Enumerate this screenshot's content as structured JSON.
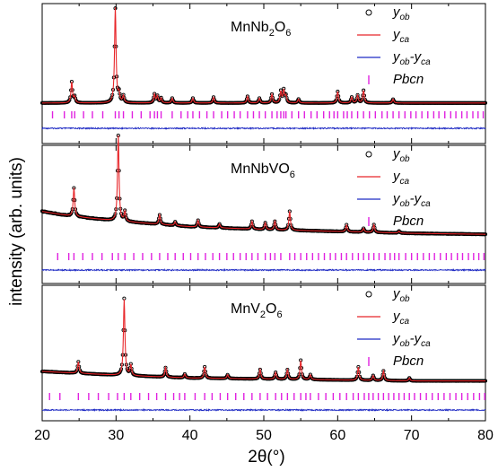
{
  "chart_data": {
    "type": "line",
    "xlabel": "2θ(°)",
    "ylabel": "intensity (arb. units)",
    "xlim": [
      20,
      80
    ],
    "xticks": [
      "20",
      "30",
      "40",
      "50",
      "60",
      "70",
      "80"
    ],
    "legend": {
      "placement": "top-right",
      "entries": [
        {
          "marker": "open-circle",
          "color": "#000000",
          "main": "y",
          "sub": "ob"
        },
        {
          "marker": "line",
          "color": "#e8262a",
          "main": "y",
          "sub": "ca"
        },
        {
          "marker": "line",
          "color": "#1f2bc4",
          "main": "y",
          "sub": "ob",
          "main2": "-y",
          "sub2": "ca"
        },
        {
          "marker": "tick",
          "color": "#e021e0",
          "main": "Pbcn"
        }
      ]
    },
    "colors": {
      "observed": "#000000",
      "calculated": "#e8262a",
      "difference": "#1f2bc4",
      "reflections": "#e021e0"
    },
    "panels": [
      {
        "sample_parts": [
          {
            "t": "MnNb"
          },
          {
            "t": "2",
            "sub": true
          },
          {
            "t": "O"
          },
          {
            "t": "6",
            "sub": true
          }
        ],
        "background": {
          "x": [
            20,
            25,
            35,
            50,
            65,
            80
          ],
          "y": [
            0.03,
            0.03,
            0.03,
            0.03,
            0.03,
            0.03
          ]
        },
        "peaks": {
          "x": [
            24.0,
            24.4,
            29.9,
            30.4,
            31.0,
            35.2,
            35.6,
            36.1,
            37.6,
            40.4,
            43.2,
            47.8,
            49.4,
            51.1,
            52.3,
            52.7,
            53.0,
            54.7,
            60.0,
            61.9,
            62.7,
            63.5,
            67.5
          ],
          "y": [
            0.22,
            0.06,
            1.0,
            0.09,
            0.07,
            0.09,
            0.07,
            0.05,
            0.05,
            0.05,
            0.06,
            0.07,
            0.05,
            0.09,
            0.12,
            0.13,
            0.07,
            0.04,
            0.12,
            0.06,
            0.08,
            0.13,
            0.04
          ]
        },
        "reflections": [
          21.4,
          23.0,
          24.0,
          24.4,
          25.6,
          26.8,
          28.2,
          29.9,
          30.4,
          31.0,
          32.2,
          33.4,
          34.6,
          35.2,
          35.6,
          36.1,
          37.6,
          38.8,
          39.7,
          40.4,
          41.3,
          42.3,
          43.2,
          44.3,
          45.1,
          46.0,
          46.8,
          47.8,
          48.6,
          49.4,
          50.2,
          51.1,
          51.8,
          52.3,
          52.7,
          53.0,
          53.8,
          54.7,
          55.5,
          56.4,
          57.2,
          58.1,
          58.9,
          59.5,
          60.0,
          60.8,
          61.3,
          61.9,
          62.7,
          63.5,
          64.3,
          65.1,
          66.0,
          66.7,
          67.5,
          68.3,
          69.1,
          69.9,
          70.6,
          71.4,
          72.2,
          73.0,
          73.7,
          74.5,
          75.3,
          76.0,
          76.8,
          77.5,
          78.3,
          79.0,
          79.7
        ]
      },
      {
        "sample_parts": [
          {
            "t": "MnNbVO"
          },
          {
            "t": "6",
            "sub": true
          }
        ],
        "background": {
          "x": [
            20,
            24,
            30,
            40,
            50,
            60,
            70,
            80
          ],
          "y": [
            0.38,
            0.33,
            0.28,
            0.22,
            0.19,
            0.17,
            0.15,
            0.14
          ]
        },
        "peaks": {
          "x": [
            24.3,
            30.3,
            31.2,
            35.9,
            38.0,
            41.1,
            44.0,
            48.4,
            50.2,
            51.5,
            53.5,
            61.2,
            63.5,
            64.9,
            68.3
          ],
          "y": [
            0.3,
            0.9,
            0.1,
            0.1,
            0.04,
            0.07,
            0.04,
            0.08,
            0.07,
            0.09,
            0.2,
            0.07,
            0.04,
            0.08,
            0.02
          ]
        },
        "reflections": [
          22.1,
          23.6,
          24.3,
          25.5,
          26.8,
          28.1,
          29.5,
          30.3,
          31.2,
          32.4,
          33.6,
          34.8,
          35.9,
          37.0,
          38.0,
          39.1,
          40.1,
          41.1,
          42.1,
          43.1,
          44.0,
          45.0,
          45.9,
          46.8,
          47.6,
          48.4,
          49.2,
          50.2,
          50.9,
          51.5,
          52.3,
          53.5,
          54.2,
          55.0,
          55.8,
          56.6,
          57.4,
          58.2,
          59.0,
          59.7,
          60.5,
          61.2,
          62.0,
          62.8,
          63.5,
          64.2,
          64.9,
          65.6,
          66.4,
          67.1,
          67.7,
          68.3,
          69.2,
          70.0,
          70.8,
          71.6,
          72.4,
          73.1,
          73.9,
          74.7,
          75.4,
          76.2,
          76.9,
          77.7,
          78.4,
          79.1,
          79.8
        ]
      },
      {
        "sample_parts": [
          {
            "t": "MnV"
          },
          {
            "t": "2",
            "sub": true
          },
          {
            "t": "O"
          },
          {
            "t": "6",
            "sub": true
          }
        ],
        "background": {
          "x": [
            20,
            25,
            30,
            40,
            50,
            60,
            70,
            80
          ],
          "y": [
            0.17,
            0.15,
            0.13,
            0.1,
            0.09,
            0.08,
            0.07,
            0.07
          ]
        },
        "peaks": {
          "x": [
            24.9,
            31.1,
            32.0,
            36.7,
            39.3,
            42.0,
            45.1,
            49.5,
            51.6,
            53.2,
            55.0,
            56.3,
            62.8,
            64.8,
            66.2,
            69.7
          ],
          "y": [
            0.12,
            0.8,
            0.11,
            0.1,
            0.04,
            0.12,
            0.04,
            0.1,
            0.07,
            0.1,
            0.2,
            0.05,
            0.14,
            0.05,
            0.1,
            0.03
          ]
        },
        "reflections": [
          21.0,
          22.4,
          24.9,
          26.3,
          27.6,
          29.0,
          30.2,
          31.1,
          32.0,
          33.2,
          34.4,
          35.5,
          36.7,
          37.8,
          38.6,
          39.3,
          40.7,
          42.0,
          43.0,
          44.1,
          45.1,
          46.2,
          47.3,
          48.4,
          49.5,
          50.5,
          51.6,
          52.4,
          53.2,
          54.1,
          55.0,
          55.7,
          56.3,
          57.4,
          58.4,
          59.4,
          60.3,
          61.2,
          62.1,
          62.8,
          63.6,
          64.2,
          64.8,
          65.5,
          66.2,
          66.9,
          67.6,
          68.3,
          69.0,
          69.7,
          70.4,
          71.2,
          72.0,
          72.8,
          73.6,
          74.4,
          75.2,
          76.0,
          76.8,
          77.6,
          78.4,
          79.2,
          79.9
        ]
      }
    ]
  }
}
